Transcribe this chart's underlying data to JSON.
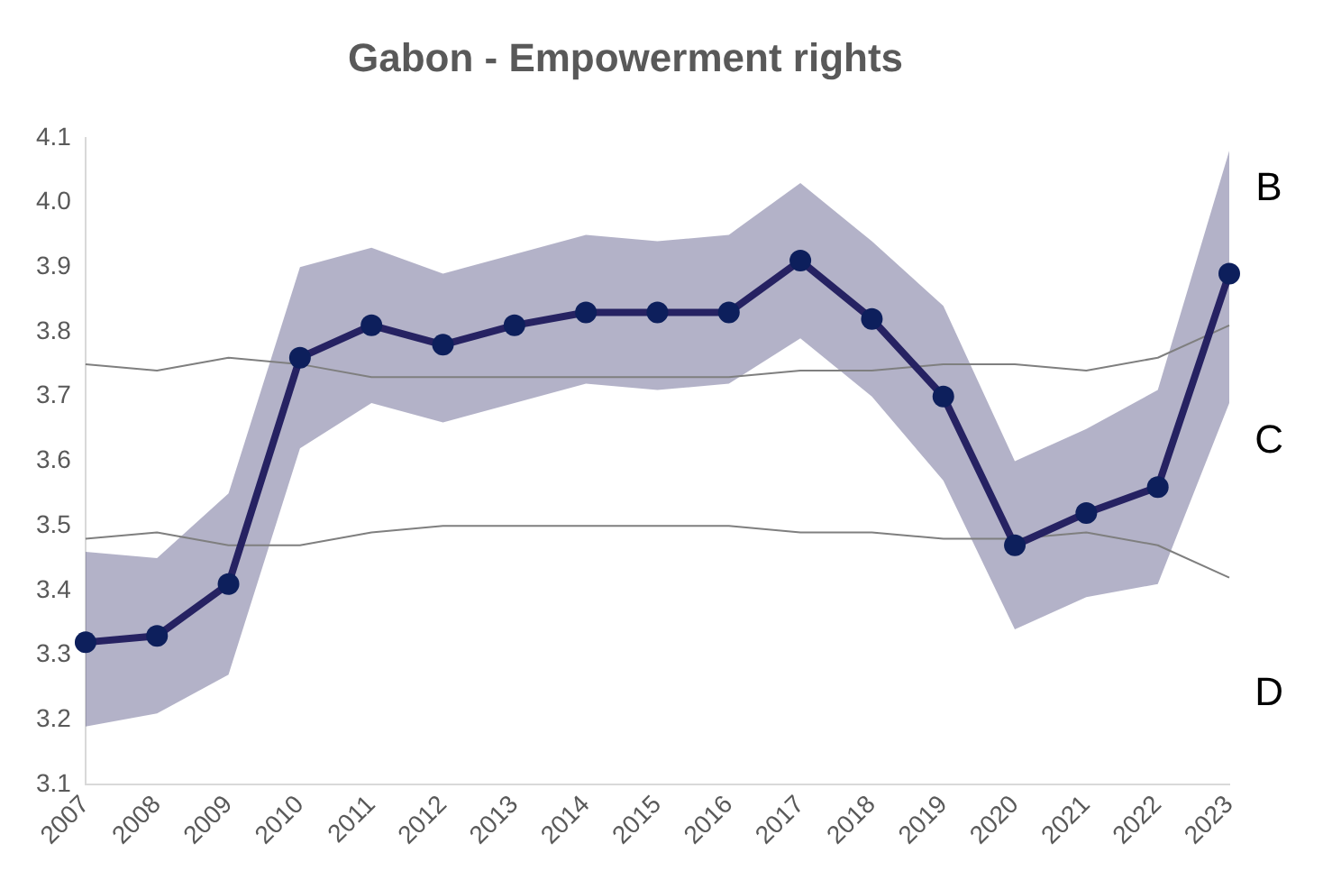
{
  "chart_data": {
    "type": "line",
    "title": "Gabon - Empowerment rights",
    "categories": [
      "2007",
      "2008",
      "2009",
      "2010",
      "2011",
      "2012",
      "2013",
      "2014",
      "2015",
      "2016",
      "2017",
      "2018",
      "2019",
      "2020",
      "2021",
      "2022",
      "2023"
    ],
    "series": [
      {
        "color": "#7f7f7f",
        "marker": "none",
        "values": [
          3.75,
          3.74,
          3.76,
          3.75,
          3.73,
          3.73,
          3.73,
          3.73,
          3.73,
          3.73,
          3.74,
          3.74,
          3.75,
          3.75,
          3.74,
          3.76,
          3.81
        ]
      },
      {
        "color": "#7f7f7f",
        "marker": "none",
        "values": [
          3.48,
          3.49,
          3.47,
          3.47,
          3.49,
          3.5,
          3.5,
          3.5,
          3.5,
          3.5,
          3.49,
          3.49,
          3.48,
          3.48,
          3.49,
          3.47,
          3.42
        ]
      },
      {
        "color": "#262262",
        "values": [
          3.32,
          3.33,
          3.41,
          3.76,
          3.81,
          3.78,
          3.81,
          3.83,
          3.83,
          3.83,
          3.91,
          3.82,
          3.7,
          3.47,
          3.52,
          3.56,
          3.89
        ],
        "lower": [
          3.19,
          3.21,
          3.27,
          3.62,
          3.69,
          3.66,
          3.69,
          3.72,
          3.71,
          3.72,
          3.79,
          3.7,
          3.57,
          3.34,
          3.39,
          3.41,
          3.69
        ],
        "upper": [
          3.46,
          3.45,
          3.55,
          3.9,
          3.93,
          3.89,
          3.92,
          3.95,
          3.94,
          3.95,
          4.03,
          3.94,
          3.84,
          3.6,
          3.65,
          3.71,
          4.08
        ]
      }
    ],
    "ylim": [
      3.1,
      4.1
    ],
    "yticks": [
      3.1,
      3.2,
      3.3,
      3.4,
      3.5,
      3.6,
      3.7,
      3.8,
      3.9,
      {
        "value": 4,
        "label": "4.0"
      },
      4.1
    ],
    "marker": "circle",
    "grid": false,
    "legend": false,
    "annotations": [
      "B",
      "C",
      "D"
    ]
  }
}
